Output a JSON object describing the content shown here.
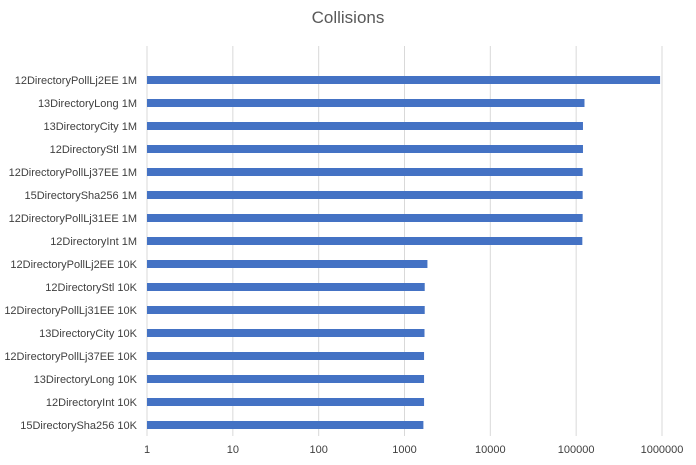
{
  "chart_data": {
    "type": "bar",
    "orientation": "horizontal",
    "title": "Collisions",
    "xlabel": "",
    "ylabel": "",
    "xscale": "log",
    "xlim": [
      1,
      1000000
    ],
    "x_ticks": [
      "1",
      "10",
      "100",
      "1000",
      "10000",
      "100000",
      "1000000"
    ],
    "grid": "vertical",
    "legend": "none",
    "categories": [
      "12DirectoryPollLj2EE 1M",
      "13DirectoryLong 1M",
      "13DirectoryCity 1M",
      "12DirectoryStl 1M",
      "12DirectoryPollLj37EE 1M",
      "15DirectorySha256 1M",
      "12DirectoryPollLj31EE 1M",
      "12DirectoryInt 1M",
      "12DirectoryPollLj2EE 10K",
      "12DirectoryStl 10K",
      "12DirectoryPollLj31EE 10K",
      "13DirectoryCity 10K",
      "12DirectoryPollLj37EE 10K",
      "13DirectoryLong 10K",
      "12DirectoryInt 10K",
      "15DirectorySha256 10K"
    ],
    "values": [
      950000,
      125000,
      120000,
      120000,
      119000,
      119000,
      119000,
      118000,
      1850,
      1720,
      1720,
      1710,
      1690,
      1690,
      1690,
      1660
    ],
    "bar_color": "#4472C4"
  }
}
